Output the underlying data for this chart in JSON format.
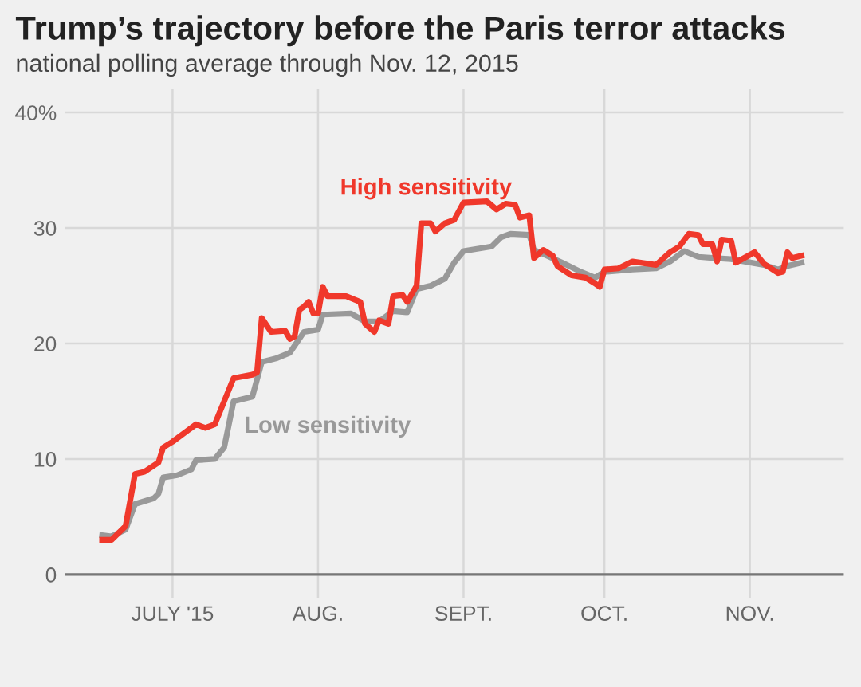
{
  "chart_data": {
    "type": "line",
    "title": "Trump’s trajectory before the Paris terror attacks",
    "subtitle": "national polling average through Nov. 12, 2015",
    "series": [
      {
        "name": "High sensitivity",
        "color": "#f0382b",
        "x": [
          "2015-06-16",
          "2015-06-18",
          "2015-06-21",
          "2015-06-23",
          "2015-06-25",
          "2015-06-28",
          "2015-06-29",
          "2015-07-01",
          "2015-07-04",
          "2015-07-06",
          "2015-07-08",
          "2015-07-10",
          "2015-07-12",
          "2015-07-14",
          "2015-07-18",
          "2015-07-19",
          "2015-07-20",
          "2015-07-22",
          "2015-07-25",
          "2015-07-26",
          "2015-07-27",
          "2015-07-28",
          "2015-07-29",
          "2015-07-30",
          "2015-07-31",
          "2015-08-01",
          "2015-08-02",
          "2015-08-03",
          "2015-08-07",
          "2015-08-10",
          "2015-08-11",
          "2015-08-13",
          "2015-08-14",
          "2015-08-16",
          "2015-08-17",
          "2015-08-19",
          "2015-08-20",
          "2015-08-22",
          "2015-08-23",
          "2015-08-25",
          "2015-08-26",
          "2015-08-28",
          "2015-08-30",
          "2015-09-01",
          "2015-09-06",
          "2015-09-08",
          "2015-09-10",
          "2015-09-12",
          "2015-09-13",
          "2015-09-15",
          "2015-09-16",
          "2015-09-18",
          "2015-09-20",
          "2015-09-21",
          "2015-09-24",
          "2015-09-27",
          "2015-09-29",
          "2015-09-30",
          "2015-10-01",
          "2015-10-04",
          "2015-10-07",
          "2015-10-12",
          "2015-10-15",
          "2015-10-17",
          "2015-10-19",
          "2015-10-21",
          "2015-10-22",
          "2015-10-24",
          "2015-10-25",
          "2015-10-26",
          "2015-10-28",
          "2015-10-29",
          "2015-11-02",
          "2015-11-04",
          "2015-11-07",
          "2015-11-08",
          "2015-11-09",
          "2015-11-10",
          "2015-11-12"
        ],
        "values": [
          3.0,
          3.0,
          4.2,
          8.7,
          8.9,
          9.7,
          11.0,
          11.5,
          12.4,
          13.0,
          12.7,
          13.0,
          15.0,
          17.0,
          17.3,
          17.5,
          22.2,
          21.0,
          21.1,
          20.4,
          20.6,
          22.9,
          23.2,
          23.6,
          22.6,
          22.6,
          24.9,
          24.1,
          24.1,
          23.6,
          21.7,
          21.0,
          22.0,
          21.7,
          24.1,
          24.2,
          23.6,
          25.0,
          30.4,
          30.4,
          29.7,
          30.4,
          30.7,
          32.2,
          32.3,
          31.6,
          32.1,
          32.0,
          30.9,
          31.1,
          27.4,
          28.1,
          27.6,
          26.7,
          25.9,
          25.7,
          25.2,
          24.9,
          26.4,
          26.5,
          27.1,
          26.8,
          27.9,
          28.4,
          29.5,
          29.4,
          28.6,
          28.6,
          27.1,
          29.0,
          28.9,
          27.0,
          27.9,
          26.9,
          26.1,
          26.2,
          27.9,
          27.4,
          27.6
        ]
      },
      {
        "name": "Low sensitivity",
        "color": "#999999",
        "x": [
          "2015-06-16",
          "2015-06-18",
          "2015-06-21",
          "2015-06-23",
          "2015-06-27",
          "2015-06-28",
          "2015-06-29",
          "2015-07-02",
          "2015-07-05",
          "2015-07-06",
          "2015-07-10",
          "2015-07-12",
          "2015-07-14",
          "2015-07-18",
          "2015-07-20",
          "2015-07-23",
          "2015-07-26",
          "2015-07-29",
          "2015-08-01",
          "2015-08-02",
          "2015-08-08",
          "2015-08-11",
          "2015-08-14",
          "2015-08-17",
          "2015-08-20",
          "2015-08-22",
          "2015-08-25",
          "2015-08-28",
          "2015-08-30",
          "2015-09-01",
          "2015-09-07",
          "2015-09-09",
          "2015-09-11",
          "2015-09-15",
          "2015-09-16",
          "2015-09-22",
          "2015-09-26",
          "2015-09-29",
          "2015-10-01",
          "2015-10-07",
          "2015-10-12",
          "2015-10-15",
          "2015-10-18",
          "2015-10-21",
          "2015-10-24",
          "2015-10-28",
          "2015-11-04",
          "2015-11-07",
          "2015-11-09",
          "2015-11-12"
        ],
        "values": [
          3.4,
          3.3,
          3.9,
          6.1,
          6.6,
          7.0,
          8.4,
          8.6,
          9.1,
          9.9,
          10.0,
          11.0,
          15.0,
          15.4,
          18.4,
          18.7,
          19.2,
          21.0,
          21.2,
          22.5,
          22.6,
          21.9,
          21.9,
          22.8,
          22.7,
          24.7,
          25.0,
          25.6,
          27.0,
          28.0,
          28.4,
          29.2,
          29.5,
          29.4,
          28.1,
          27.0,
          26.2,
          25.7,
          26.2,
          26.4,
          26.5,
          27.1,
          28.0,
          27.5,
          27.4,
          27.3,
          26.8,
          26.4,
          26.7,
          27.0
        ]
      }
    ],
    "xlim": [
      "2015-06-08",
      "2015-11-21"
    ],
    "xticks": [
      {
        "value": "2015-07-01",
        "label": "JULY '15"
      },
      {
        "value": "2015-08-01",
        "label": "AUG."
      },
      {
        "value": "2015-09-01",
        "label": "SEPT."
      },
      {
        "value": "2015-10-01",
        "label": "OCT."
      },
      {
        "value": "2015-11-01",
        "label": "NOV."
      }
    ],
    "ylim": [
      -2,
      42
    ],
    "yticks": [
      0,
      10,
      20,
      30,
      {
        "value": 40,
        "label": "40%"
      }
    ],
    "grid": true,
    "legend": false,
    "marker": "none",
    "line_style": "solid"
  }
}
